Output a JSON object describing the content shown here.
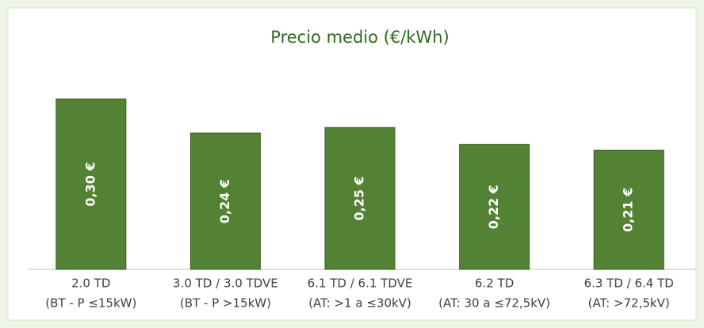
{
  "chart_data": {
    "type": "bar",
    "title": "Precio medio (€/kWh)",
    "categories": [
      [
        "2.0 TD",
        "(BT - P ≤15kW)"
      ],
      [
        "3.0 TD / 3.0 TDVE",
        "(BT - P >15kW)"
      ],
      [
        "6.1 TD / 6.1 TDVE",
        "(AT: >1 a ≤30kV)"
      ],
      [
        "6.2 TD",
        "(AT: 30 a ≤72,5kV)"
      ],
      [
        "6.3 TD / 6.4 TD",
        "(AT: >72,5kV)"
      ]
    ],
    "values": [
      0.3,
      0.24,
      0.25,
      0.22,
      0.21
    ],
    "value_labels": [
      "0,30 €",
      "0,24 €",
      "0,25 €",
      "0,22 €",
      "0,21 €"
    ],
    "color": "#548235"
  }
}
